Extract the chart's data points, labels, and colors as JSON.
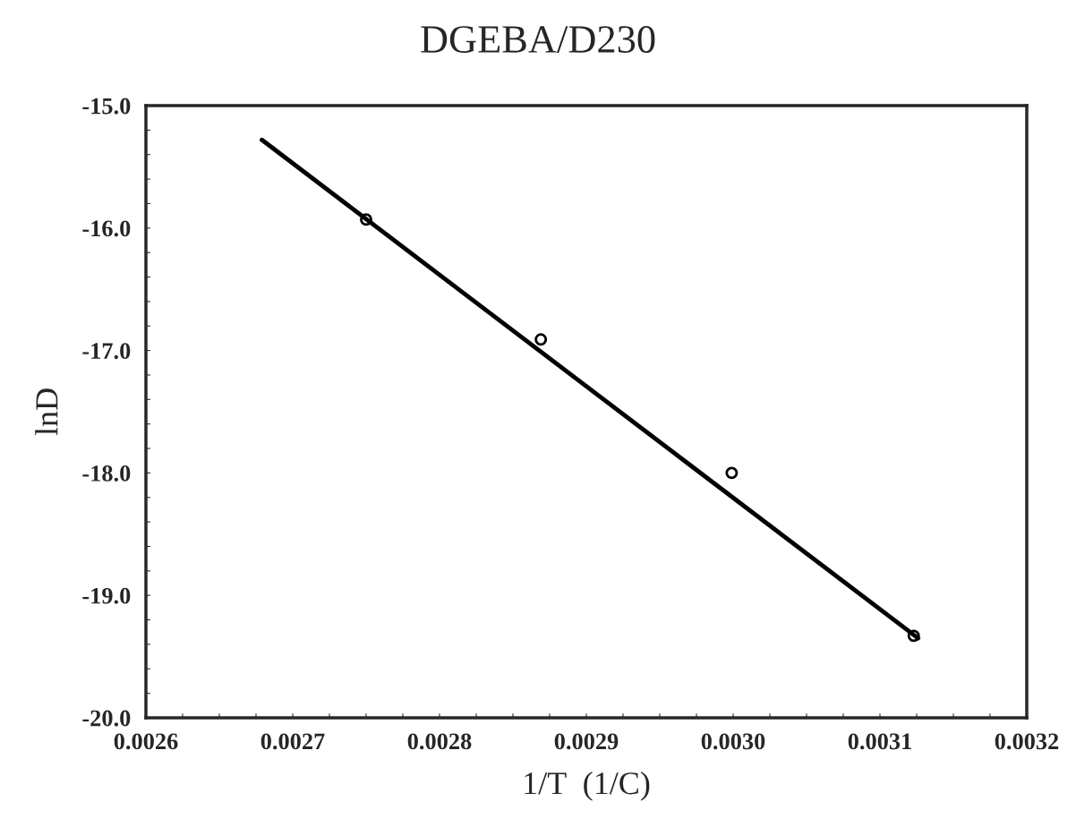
{
  "chart_data": {
    "type": "scatter",
    "title": "DGEBA/D230",
    "xlabel": "1/T  (1/C)",
    "ylabel": "lnD",
    "series": [
      {
        "color": "#000000",
        "marker": "circle",
        "x": [
          0.00275,
          0.002869,
          0.002999,
          0.003123
        ],
        "values": [
          -15.93,
          -16.91,
          -18.0,
          -19.33
        ]
      },
      {
        "type": "line",
        "color": "#000000",
        "marker": "none",
        "line_style": "solid",
        "x": [
          0.002679,
          0.003126
        ],
        "values": [
          -15.28,
          -19.35
        ]
      }
    ],
    "xlim": [
      0.0026,
      0.0032
    ],
    "ylim": [
      -20.0,
      -15.0
    ],
    "xticks": [
      {
        "value": 0.0026,
        "label": "0.0026"
      },
      {
        "value": 0.002625,
        "label": null
      },
      {
        "value": 0.00265,
        "label": null
      },
      {
        "value": 0.002675,
        "label": null
      },
      {
        "value": 0.0027,
        "label": "0.0027"
      },
      {
        "value": 0.002725,
        "label": null
      },
      {
        "value": 0.00275,
        "label": null
      },
      {
        "value": 0.002775,
        "label": null
      },
      {
        "value": 0.0028,
        "label": "0.0028"
      },
      {
        "value": 0.002825,
        "label": null
      },
      {
        "value": 0.00285,
        "label": null
      },
      {
        "value": 0.002875,
        "label": null
      },
      {
        "value": 0.0029,
        "label": "0.0029"
      },
      {
        "value": 0.002925,
        "label": null
      },
      {
        "value": 0.00295,
        "label": null
      },
      {
        "value": 0.002975,
        "label": null
      },
      {
        "value": 0.003,
        "label": "0.0030"
      },
      {
        "value": 0.003025,
        "label": null
      },
      {
        "value": 0.00305,
        "label": null
      },
      {
        "value": 0.003075,
        "label": null
      },
      {
        "value": 0.0031,
        "label": "0.0031"
      },
      {
        "value": 0.003125,
        "label": null
      },
      {
        "value": 0.00315,
        "label": null
      },
      {
        "value": 0.003175,
        "label": null
      },
      {
        "value": 0.0032,
        "label": "0.0032"
      }
    ],
    "yticks": [
      {
        "value": -20.0,
        "label": "-20.0"
      },
      {
        "value": -19.8,
        "label": null
      },
      {
        "value": -19.6,
        "label": null
      },
      {
        "value": -19.4,
        "label": null
      },
      {
        "value": -19.2,
        "label": null
      },
      {
        "value": -19.0,
        "label": "-19.0"
      },
      {
        "value": -18.8,
        "label": null
      },
      {
        "value": -18.6,
        "label": null
      },
      {
        "value": -18.4,
        "label": null
      },
      {
        "value": -18.2,
        "label": null
      },
      {
        "value": -18.0,
        "label": "-18.0"
      },
      {
        "value": -17.8,
        "label": null
      },
      {
        "value": -17.6,
        "label": null
      },
      {
        "value": -17.4,
        "label": null
      },
      {
        "value": -17.2,
        "label": null
      },
      {
        "value": -17.0,
        "label": "-17.0"
      },
      {
        "value": -16.8,
        "label": null
      },
      {
        "value": -16.6,
        "label": null
      },
      {
        "value": -16.4,
        "label": null
      },
      {
        "value": -16.2,
        "label": null
      },
      {
        "value": -16.0,
        "label": "-16.0"
      },
      {
        "value": -15.8,
        "label": null
      },
      {
        "value": -15.6,
        "label": null
      },
      {
        "value": -15.4,
        "label": null
      },
      {
        "value": -15.2,
        "label": null
      },
      {
        "value": -15.0,
        "label": "-15.0"
      }
    ],
    "grid": false,
    "legend": false
  }
}
